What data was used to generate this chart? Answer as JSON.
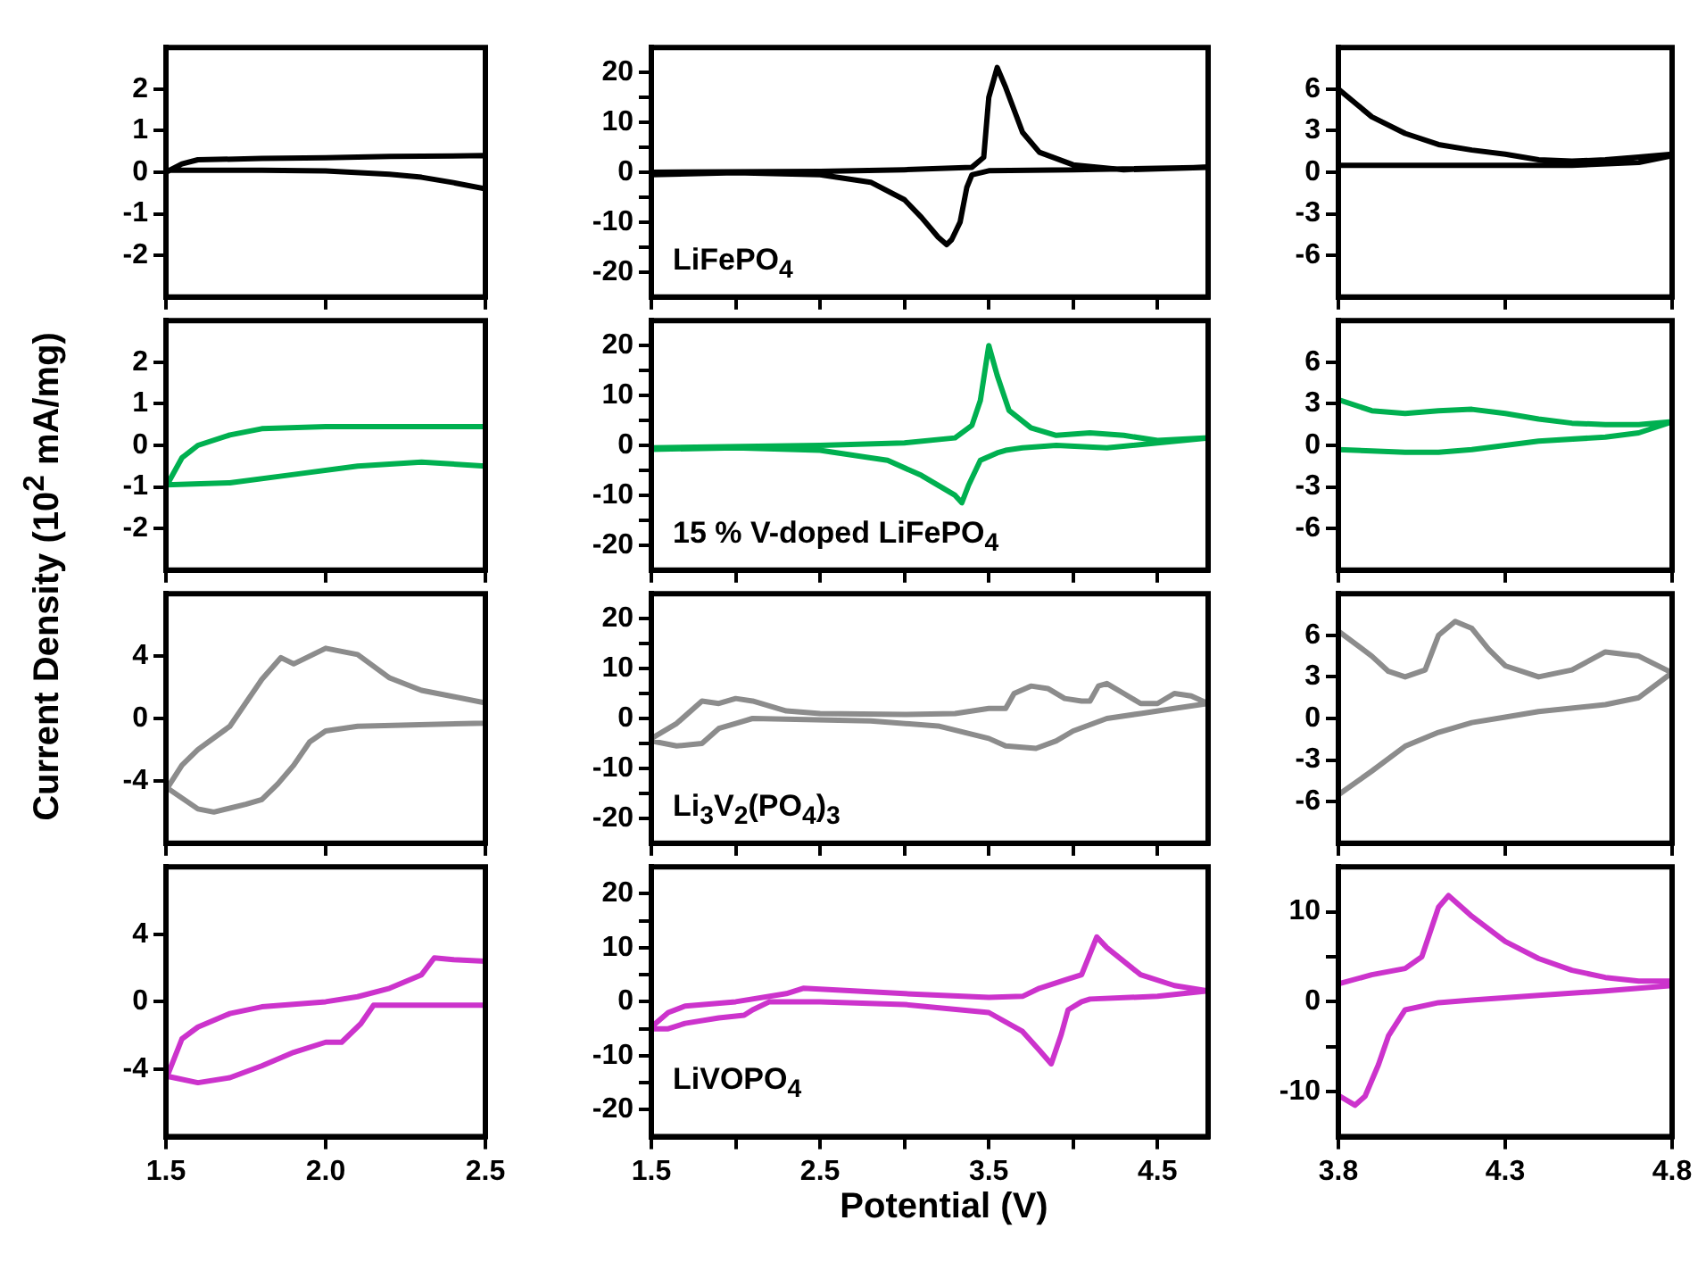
{
  "chart_data": [
    {
      "type": "line",
      "marker": "none",
      "tick_labels": "y",
      "xlim": [
        1.5,
        2.5
      ],
      "xticks": [
        1.5,
        2.0,
        2.5
      ],
      "ylim": [
        -3,
        3
      ],
      "yticks": [
        -2,
        -1,
        0,
        1,
        2
      ],
      "ylabel": "Current Density (10$^{2}$ mA/mg)",
      "series": [
        {
          "color": "#000000",
          "x": [
            1.5,
            1.55,
            1.6,
            1.8,
            2.0,
            2.2,
            2.5,
            2.5,
            2.4,
            2.3,
            2.2,
            2.0,
            1.8,
            1.6,
            1.5
          ],
          "values": [
            0,
            0.2,
            0.3,
            0.33,
            0.35,
            0.38,
            0.4,
            -0.4,
            -0.25,
            -0.12,
            -0.05,
            0.03,
            0.05,
            0.05,
            0.05
          ]
        }
      ]
    },
    {
      "type": "line",
      "marker": "none",
      "tick_labels": "y",
      "xlim": [
        1.5,
        4.8
      ],
      "xticks": [
        1.5,
        {
          "value": 2.0,
          "label": null
        },
        2.5,
        {
          "value": 3.0,
          "label": null
        },
        3.5,
        {
          "value": 4.0,
          "label": null
        },
        4.5
      ],
      "ylim": [
        -25,
        25
      ],
      "yticks": [
        -20,
        {
          "value": -15,
          "label": null
        },
        -10,
        {
          "value": -5,
          "label": null
        },
        0,
        {
          "value": 5,
          "label": null
        },
        10,
        {
          "value": 15,
          "label": null
        },
        20
      ],
      "annotations": [
        "LiFePO$_{4}$"
      ],
      "series": [
        {
          "color": "#000000",
          "x": [
            1.5,
            2.5,
            3.0,
            3.4,
            3.47,
            3.5,
            3.55,
            3.6,
            3.7,
            3.8,
            4.0,
            4.3,
            4.8,
            4.0,
            3.5,
            3.4,
            3.37,
            3.33,
            3.28,
            3.25,
            3.2,
            3.1,
            3.0,
            2.8,
            2.5,
            2.0,
            1.5
          ],
          "values": [
            0,
            0.2,
            0.5,
            1,
            3,
            15,
            21,
            17,
            8,
            4,
            1.5,
            0.5,
            1,
            0.5,
            0.3,
            -0.5,
            -3,
            -10,
            -13.5,
            -14.5,
            -13,
            -9,
            -5.5,
            -2,
            -0.5,
            -0.1,
            -0.5
          ]
        }
      ]
    },
    {
      "type": "line",
      "marker": "none",
      "tick_labels": "y",
      "xlim": [
        3.8,
        4.8
      ],
      "xticks": [
        3.8,
        4.3,
        4.8
      ],
      "ylim": [
        -9,
        9
      ],
      "yticks": [
        -6,
        -3,
        0,
        3,
        6
      ],
      "series": [
        {
          "color": "#000000",
          "x": [
            3.8,
            4.0,
            4.5,
            4.7,
            4.8,
            4.8,
            4.7,
            4.6,
            4.5,
            4.4,
            4.3,
            4.2,
            4.1,
            4.0,
            3.9,
            3.8
          ],
          "values": [
            0.5,
            0.5,
            0.5,
            0.7,
            1.2,
            1.3,
            1.1,
            0.9,
            0.8,
            0.9,
            1.3,
            1.6,
            2,
            2.8,
            4,
            6
          ]
        }
      ]
    },
    {
      "type": "line",
      "marker": "none",
      "tick_labels": "y",
      "xlim": [
        1.5,
        2.5
      ],
      "xticks": [
        1.5,
        2.0,
        2.5
      ],
      "ylim": [
        -3,
        3
      ],
      "yticks": [
        -2,
        -1,
        0,
        1,
        2
      ],
      "series": [
        {
          "color": "#00b050",
          "x": [
            1.5,
            1.55,
            1.6,
            1.7,
            1.8,
            2.0,
            2.5,
            2.5,
            2.3,
            2.1,
            1.9,
            1.7,
            1.5
          ],
          "values": [
            -1,
            -0.3,
            0,
            0.25,
            0.4,
            0.45,
            0.45,
            -0.5,
            -0.4,
            -0.5,
            -0.7,
            -0.9,
            -0.95
          ]
        }
      ]
    },
    {
      "type": "line",
      "marker": "none",
      "tick_labels": "y",
      "xlim": [
        1.5,
        4.8
      ],
      "xticks": [
        1.5,
        {
          "value": 2.0,
          "label": null
        },
        2.5,
        {
          "value": 3.0,
          "label": null
        },
        3.5,
        {
          "value": 4.0,
          "label": null
        },
        4.5
      ],
      "ylim": [
        -25,
        25
      ],
      "yticks": [
        -20,
        {
          "value": -15,
          "label": null
        },
        -10,
        {
          "value": -5,
          "label": null
        },
        0,
        {
          "value": 5,
          "label": null
        },
        10,
        {
          "value": 15,
          "label": null
        },
        20
      ],
      "annotations": [
        "15 % V-doped LiFePO$_{4}$"
      ],
      "series": [
        {
          "color": "#00b050",
          "x": [
            1.5,
            2.5,
            3.0,
            3.3,
            3.4,
            3.45,
            3.5,
            3.55,
            3.62,
            3.75,
            3.9,
            4.1,
            4.3,
            4.5,
            4.8,
            4.5,
            4.2,
            3.9,
            3.7,
            3.6,
            3.55,
            3.45,
            3.38,
            3.34,
            3.3,
            3.1,
            2.9,
            2.5,
            2.0,
            1.5
          ],
          "values": [
            -0.5,
            0,
            0.5,
            1.5,
            4,
            9,
            20,
            14,
            7,
            3.5,
            2,
            2.5,
            2,
            1,
            1.5,
            0.5,
            -0.5,
            0,
            -0.5,
            -1,
            -1.5,
            -3,
            -8,
            -11.5,
            -10,
            -6,
            -3,
            -1,
            -0.5,
            -0.8
          ]
        }
      ]
    },
    {
      "type": "line",
      "marker": "none",
      "tick_labels": "y",
      "xlim": [
        3.8,
        4.8
      ],
      "xticks": [
        3.8,
        4.3,
        4.8
      ],
      "ylim": [
        -9,
        9
      ],
      "yticks": [
        -6,
        -3,
        0,
        3,
        6
      ],
      "series": [
        {
          "color": "#00b050",
          "x": [
            3.8,
            3.9,
            4.0,
            4.1,
            4.2,
            4.3,
            4.4,
            4.6,
            4.7,
            4.8,
            4.8,
            4.7,
            4.6,
            4.5,
            4.4,
            4.3,
            4.2,
            4.1,
            4.0,
            3.9,
            3.8
          ],
          "values": [
            -0.3,
            -0.4,
            -0.5,
            -0.5,
            -0.3,
            0,
            0.3,
            0.6,
            0.9,
            1.7,
            1.7,
            1.5,
            1.5,
            1.6,
            1.9,
            2.3,
            2.6,
            2.5,
            2.3,
            2.5,
            3.3
          ]
        }
      ]
    },
    {
      "type": "line",
      "marker": "none",
      "tick_labels": "y",
      "xlim": [
        1.5,
        2.5
      ],
      "xticks": [
        1.5,
        2.0,
        2.5
      ],
      "ylim": [
        -8,
        8
      ],
      "yticks": [
        -4,
        0,
        4
      ],
      "series": [
        {
          "color": "#8c8c8c",
          "x": [
            1.5,
            1.55,
            1.6,
            1.7,
            1.75,
            1.8,
            1.86,
            1.9,
            1.95,
            2.0,
            2.1,
            2.2,
            2.3,
            2.4,
            2.5,
            2.5,
            2.1,
            2.0,
            1.95,
            1.9,
            1.85,
            1.8,
            1.75,
            1.65,
            1.6,
            1.5
          ],
          "values": [
            -4.6,
            -3,
            -2,
            -0.5,
            1,
            2.5,
            3.9,
            3.5,
            4,
            4.5,
            4.1,
            2.6,
            1.8,
            1.4,
            1,
            -0.3,
            -0.5,
            -0.8,
            -1.5,
            -3,
            -4.2,
            -5.2,
            -5.5,
            -6,
            -5.8,
            -4.4
          ]
        }
      ]
    },
    {
      "type": "line",
      "marker": "none",
      "tick_labels": "y",
      "xlim": [
        1.5,
        4.8
      ],
      "xticks": [
        1.5,
        {
          "value": 2.0,
          "label": null
        },
        2.5,
        {
          "value": 3.0,
          "label": null
        },
        3.5,
        {
          "value": 4.0,
          "label": null
        },
        4.5
      ],
      "ylim": [
        -25,
        25
      ],
      "yticks": [
        -20,
        {
          "value": -15,
          "label": null
        },
        -10,
        {
          "value": -5,
          "label": null
        },
        0,
        {
          "value": 5,
          "label": null
        },
        10,
        {
          "value": 15,
          "label": null
        },
        20
      ],
      "annotations": [
        "Li$_{3}$V$_{2}$(PO$_{4}$)$_{3}$"
      ],
      "series": [
        {
          "color": "#8c8c8c",
          "x": [
            1.5,
            1.65,
            1.8,
            1.9,
            2.0,
            2.1,
            2.3,
            2.5,
            3.0,
            3.3,
            3.5,
            3.6,
            3.65,
            3.75,
            3.85,
            3.95,
            4.05,
            4.1,
            4.15,
            4.2,
            4.3,
            4.4,
            4.5,
            4.6,
            4.7,
            4.8,
            4.6,
            4.4,
            4.2,
            4.0,
            3.9,
            3.78,
            3.6,
            3.5,
            3.2,
            2.8,
            2.1,
            2.0,
            1.9,
            1.8,
            1.65,
            1.5
          ],
          "values": [
            -4,
            -1,
            3.5,
            3,
            4,
            3.5,
            1.5,
            1,
            0.8,
            1,
            2,
            2,
            5,
            6.5,
            6,
            4,
            3.5,
            3.5,
            6.5,
            7,
            5,
            3,
            3,
            5,
            4.5,
            3,
            2,
            1,
            0,
            -2.5,
            -4.5,
            -6,
            -5.5,
            -4,
            -1.5,
            -0.5,
            0,
            -1,
            -2,
            -5,
            -5.5,
            -4.5
          ]
        }
      ]
    },
    {
      "type": "line",
      "marker": "none",
      "tick_labels": "y",
      "xlim": [
        3.8,
        4.8
      ],
      "xticks": [
        3.8,
        4.3,
        4.8
      ],
      "ylim": [
        -9,
        9
      ],
      "yticks": [
        -6,
        -3,
        0,
        3,
        6
      ],
      "series": [
        {
          "color": "#8c8c8c",
          "x": [
            3.8,
            3.9,
            3.95,
            4.0,
            4.06,
            4.1,
            4.15,
            4.2,
            4.25,
            4.3,
            4.4,
            4.5,
            4.6,
            4.7,
            4.8,
            4.7,
            4.6,
            4.4,
            4.3,
            4.2,
            4.1,
            4.0,
            3.9,
            3.8
          ],
          "values": [
            6.3,
            4.5,
            3.4,
            3,
            3.5,
            6,
            7,
            6.5,
            5,
            3.8,
            3,
            3.5,
            4.8,
            4.5,
            3.3,
            1.5,
            1,
            0.5,
            0.1,
            -0.3,
            -1,
            -2,
            -3.8,
            -5.5
          ]
        }
      ]
    },
    {
      "type": "line",
      "marker": "none",
      "xlim": [
        1.5,
        2.5
      ],
      "xticks": [
        1.5,
        {
          "value": 2.0,
          "label": "2.0"
        },
        2.5
      ],
      "ylim": [
        -8,
        8
      ],
      "yticks": [
        -4,
        0,
        4
      ],
      "series": [
        {
          "color": "#cc33cc",
          "x": [
            1.5,
            1.55,
            1.6,
            1.7,
            1.8,
            2.0,
            2.1,
            2.2,
            2.3,
            2.34,
            2.4,
            2.5,
            2.5,
            2.15,
            2.11,
            2.05,
            2.0,
            1.9,
            1.8,
            1.7,
            1.6,
            1.5
          ],
          "values": [
            -4.6,
            -2.2,
            -1.5,
            -0.7,
            -0.3,
            0,
            0.3,
            0.8,
            1.6,
            2.6,
            2.5,
            2.4,
            -0.2,
            -0.2,
            -1.3,
            -2.4,
            -2.4,
            -3,
            -3.8,
            -4.5,
            -4.8,
            -4.4
          ]
        }
      ]
    },
    {
      "type": "line",
      "marker": "none",
      "xlim": [
        1.5,
        4.8
      ],
      "xticks": [
        1.5,
        {
          "value": 2.0,
          "label": null
        },
        2.5,
        {
          "value": 3.0,
          "label": null
        },
        3.5,
        {
          "value": 4.0,
          "label": null
        },
        4.5
      ],
      "ylim": [
        -25,
        25
      ],
      "yticks": [
        -20,
        {
          "value": -15,
          "label": null
        },
        -10,
        {
          "value": -5,
          "label": null
        },
        0,
        {
          "value": 5,
          "label": null
        },
        10,
        {
          "value": 15,
          "label": null
        },
        20
      ],
      "annotations": [
        "LiVOPO$_{4}$"
      ],
      "xlabel": "Potential (V)",
      "series": [
        {
          "color": "#cc33cc",
          "x": [
            1.5,
            1.6,
            1.7,
            2.0,
            2.3,
            2.4,
            3.0,
            3.5,
            3.7,
            3.8,
            3.95,
            4.05,
            4.14,
            4.2,
            4.4,
            4.6,
            4.8,
            4.5,
            4.1,
            4.05,
            3.97,
            3.93,
            3.87,
            3.8,
            3.7,
            3.5,
            3.0,
            2.5,
            2.2,
            2.1,
            2.05,
            1.9,
            1.7,
            1.6,
            1.5
          ],
          "values": [
            -4.7,
            -2,
            -0.8,
            0,
            1.5,
            2.5,
            1.5,
            0.8,
            1,
            2.5,
            4,
            5,
            12,
            10,
            5,
            3,
            2,
            1,
            0.5,
            0,
            -1.5,
            -6,
            -11.5,
            -9,
            -5.5,
            -2,
            -0.5,
            0,
            0,
            -1.5,
            -2.5,
            -3,
            -4,
            -5,
            -5
          ]
        }
      ]
    },
    {
      "type": "line",
      "marker": "none",
      "xlim": [
        3.8,
        4.8
      ],
      "xticks": [
        3.8,
        4.3,
        4.8
      ],
      "ylim": [
        -15,
        15
      ],
      "yticks": [
        -10,
        {
          "value": -5,
          "label": null
        },
        0,
        {
          "value": 5,
          "label": null
        },
        10
      ],
      "series": [
        {
          "color": "#cc33cc",
          "x": [
            3.8,
            3.9,
            4.0,
            4.05,
            4.1,
            4.13,
            4.2,
            4.3,
            4.4,
            4.5,
            4.6,
            4.7,
            4.8,
            4.8,
            4.6,
            4.4,
            4.2,
            4.1,
            4.0,
            3.95,
            3.92,
            3.88,
            3.85,
            3.8
          ],
          "values": [
            2,
            3,
            3.7,
            5,
            10.5,
            11.8,
            9.5,
            6.7,
            4.8,
            3.5,
            2.7,
            2.3,
            2.3,
            1.8,
            1.2,
            0.7,
            0.2,
            -0.1,
            -0.9,
            -3.8,
            -7,
            -10.5,
            -11.5,
            -10.4
          ]
        }
      ]
    }
  ]
}
